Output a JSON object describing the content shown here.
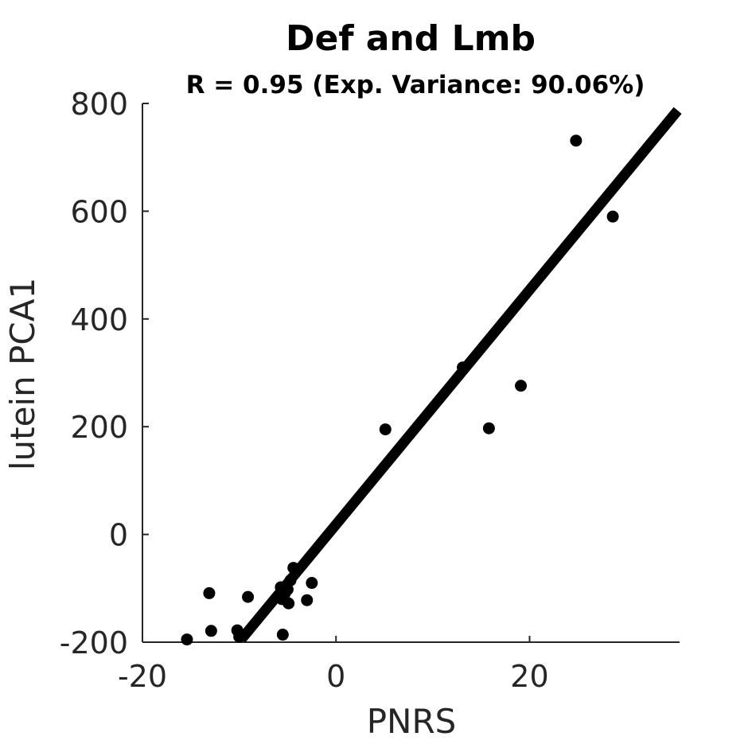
{
  "chart_data": {
    "type": "scatter",
    "title": "Def and Lmb",
    "subtitle": "R = 0.95 (Exp. Variance: 90.06%)",
    "xlabel": "PNRS",
    "ylabel": "lutein PCA1",
    "xlim": [
      -20,
      35.5
    ],
    "ylim": [
      -200,
      800
    ],
    "xticks": [
      -20,
      0,
      20
    ],
    "yticks": [
      -200,
      0,
      200,
      400,
      600,
      800
    ],
    "grid": false,
    "point_color": "#000000",
    "line_color": "#000000",
    "points": [
      {
        "x": -15.4,
        "y": -195
      },
      {
        "x": -13.1,
        "y": -109
      },
      {
        "x": -12.9,
        "y": -179
      },
      {
        "x": -10.2,
        "y": -178
      },
      {
        "x": -10.0,
        "y": -190
      },
      {
        "x": -9.1,
        "y": -116
      },
      {
        "x": -5.7,
        "y": -98
      },
      {
        "x": -5.6,
        "y": -120
      },
      {
        "x": -5.5,
        "y": -186
      },
      {
        "x": -5.3,
        "y": -110
      },
      {
        "x": -5.0,
        "y": -102
      },
      {
        "x": -4.9,
        "y": -128
      },
      {
        "x": -4.7,
        "y": -85
      },
      {
        "x": -4.4,
        "y": -62
      },
      {
        "x": -3.0,
        "y": -122
      },
      {
        "x": -2.5,
        "y": -90
      },
      {
        "x": 5.1,
        "y": 195
      },
      {
        "x": 13.1,
        "y": 310
      },
      {
        "x": 15.8,
        "y": 197
      },
      {
        "x": 19.1,
        "y": 276
      },
      {
        "x": 24.8,
        "y": 731
      },
      {
        "x": 28.6,
        "y": 590
      }
    ],
    "fit_line": {
      "x": [
        -9.8,
        35.3
      ],
      "y": [
        -195,
        787
      ]
    }
  }
}
